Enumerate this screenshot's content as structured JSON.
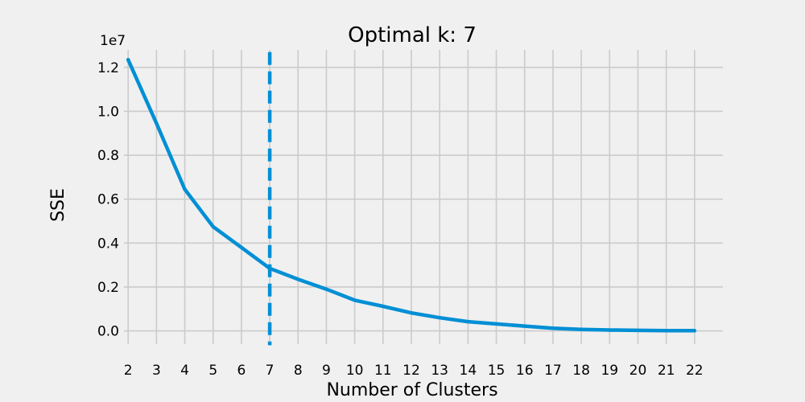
{
  "chart_data": {
    "type": "line",
    "title": "Optimal k: 7",
    "xlabel": "Number of Clusters",
    "ylabel": "SSE",
    "y_offset_label": "1e7",
    "y_multiplier": 10000000,
    "x": [
      2,
      3,
      4,
      5,
      6,
      7,
      8,
      9,
      10,
      11,
      12,
      13,
      14,
      15,
      16,
      17,
      18,
      19,
      20,
      21,
      22
    ],
    "series": [
      {
        "name": "",
        "values": [
          12350000,
          9450000,
          6450000,
          4750000,
          3800000,
          2850000,
          2350000,
          1900000,
          1400000,
          1120000,
          820000,
          600000,
          420000,
          320000,
          220000,
          120000,
          70000,
          40000,
          25000,
          15000,
          10000
        ]
      }
    ],
    "x_ticks": [
      "2",
      "3",
      "4",
      "5",
      "6",
      "7",
      "8",
      "9",
      "10",
      "11",
      "12",
      "13",
      "14",
      "15",
      "16",
      "17",
      "18",
      "19",
      "20",
      "21",
      "22"
    ],
    "y_tick_values": [
      0,
      0.2,
      0.4,
      0.6,
      0.8,
      1.0,
      1.2
    ],
    "y_ticks": [
      "0.0",
      "0.2",
      "0.4",
      "0.6",
      "0.8",
      "1.0",
      "1.2"
    ],
    "xlim": [
      1,
      23
    ],
    "ylim": [
      -0.06,
      1.28
    ],
    "vertical_line": {
      "x": 7,
      "style": "dashed"
    },
    "grid": true,
    "colors": {
      "background": "#f0f0f0",
      "grid": "#cbcbcb",
      "line": "#008fd5"
    }
  }
}
